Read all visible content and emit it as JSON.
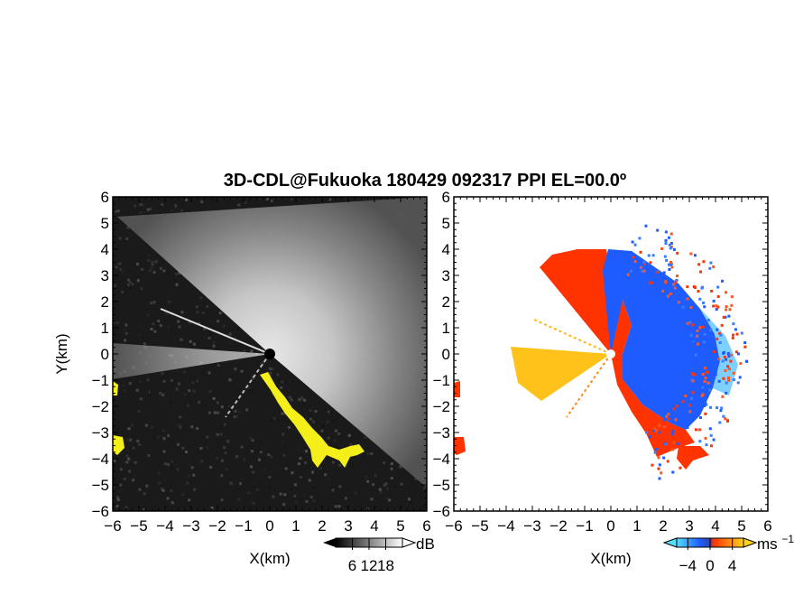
{
  "title": "3D-CDL@Fukuoka 180429 092317 PPI EL=00.0º",
  "colors": {
    "background": "#ffffff",
    "snr_panel_bg": "#1a1a1a",
    "snr_highlight": "#ffff1a",
    "velocity_positive": "#ff3300",
    "velocity_negative": "#1e5cff",
    "velocity_near_zero": "#ffc21a"
  },
  "chart_data": [
    {
      "type": "heatmap",
      "name": "snr-ppi",
      "xlabel": "X(km)",
      "ylabel": "Y(km)",
      "xlim": [
        -6,
        6
      ],
      "ylim": [
        -6,
        6
      ],
      "x_ticks": [
        "−6",
        "−5",
        "−4",
        "−3",
        "−2",
        "−1",
        "0",
        "1",
        "2",
        "3",
        "4",
        "5",
        "6"
      ],
      "y_ticks": [
        "−6",
        "−5",
        "−4",
        "−3",
        "−2",
        "−1",
        "0",
        "1",
        "2",
        "3",
        "4",
        "5",
        "6"
      ],
      "colorbar": {
        "unit": "dB",
        "ticks": [
          "6",
          "12",
          "18"
        ],
        "tick_values": [
          6,
          12,
          18
        ],
        "range": [
          0,
          24
        ],
        "colors": [
          "#000000",
          "#ffffff"
        ]
      }
    },
    {
      "type": "heatmap",
      "name": "doppler-velocity-ppi",
      "xlabel": "X(km)",
      "ylabel": "",
      "xlim": [
        -6,
        6
      ],
      "ylim": [
        -6,
        6
      ],
      "x_ticks": [
        "−6",
        "−5",
        "−4",
        "−3",
        "−2",
        "−1",
        "0",
        "1",
        "2",
        "3",
        "4",
        "5",
        "6"
      ],
      "y_ticks": [
        "−6",
        "−5",
        "−4",
        "−3",
        "−2",
        "−1",
        "0",
        "1",
        "2",
        "3",
        "4",
        "5",
        "6"
      ],
      "colorbar": {
        "unit": "ms",
        "unit_superscript": "−1",
        "ticks": [
          "−4",
          "0",
          "4"
        ],
        "tick_values": [
          -4,
          0,
          4
        ],
        "range": [
          -6,
          6
        ],
        "colors": [
          "#55ddff",
          "#1e5cff",
          "#ff3300",
          "#ffd21a"
        ]
      }
    }
  ]
}
